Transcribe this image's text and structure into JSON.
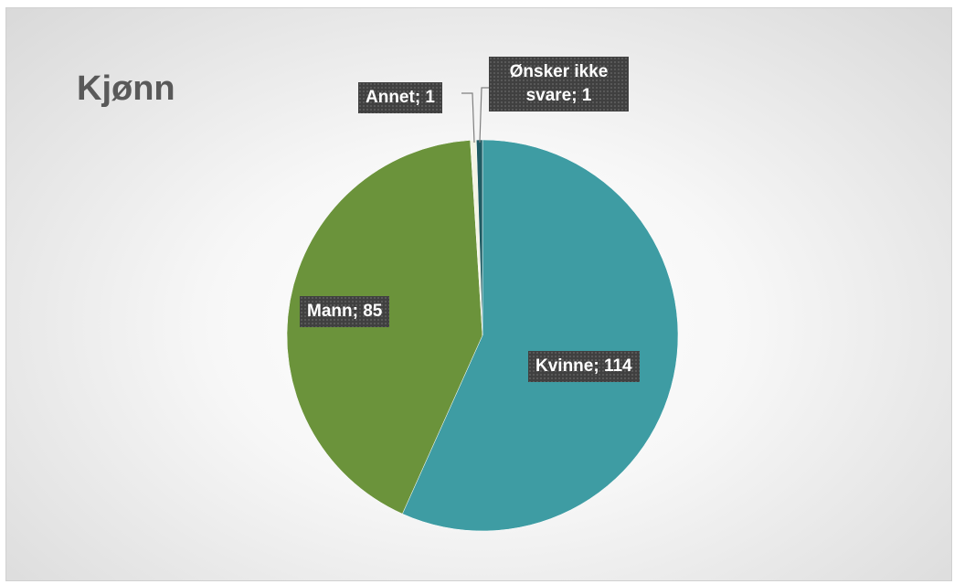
{
  "chart_data": {
    "type": "pie",
    "title": "Kjønn",
    "values": [
      114,
      85,
      1,
      1
    ],
    "value_labels": [
      "Kvinne; 114",
      "Mann; 85",
      "Annet; 1",
      "Ønsker ikke svare; 1"
    ],
    "colors": [
      "#3e9ca3",
      "#6b933b",
      "#f4f4e4",
      "#1f5b63"
    ]
  }
}
